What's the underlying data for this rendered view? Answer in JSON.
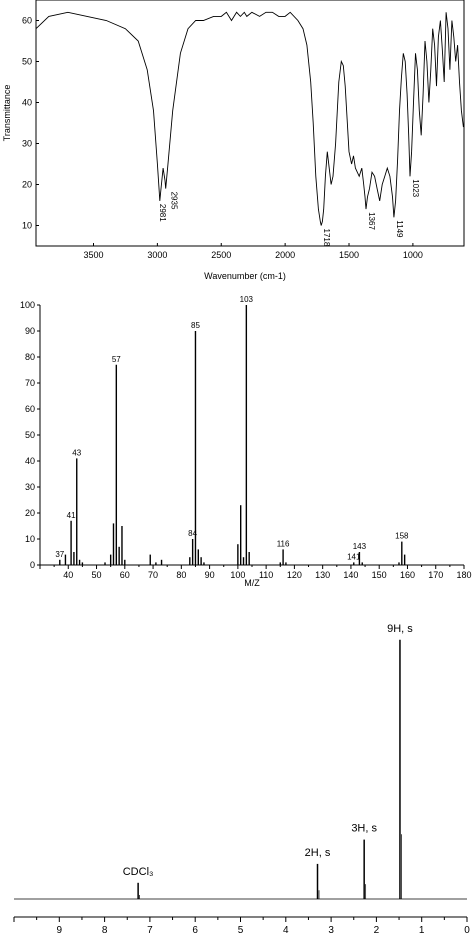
{
  "chart_data": [
    {
      "type": "line",
      "ylabel": "Transmittance",
      "xlabel": "Wavenumber (cm-1)",
      "xlim": [
        3950,
        600
      ],
      "ylim": [
        5,
        65
      ],
      "xticks": [
        "3500",
        "3000",
        "2500",
        "2000",
        "1500",
        "1000"
      ],
      "yticks": [
        "10",
        "20",
        "30",
        "40",
        "50",
        "60"
      ],
      "series": [
        {
          "x": [
            3950,
            3850,
            3700,
            3550,
            3400,
            3250,
            3150,
            3080,
            3030,
            3000,
            2985,
            2981,
            2975,
            2955,
            2940,
            2935,
            2920,
            2880,
            2820,
            2760,
            2700,
            2640,
            2560,
            2500,
            2460,
            2420,
            2380,
            2350,
            2320,
            2300,
            2260,
            2200,
            2150,
            2100,
            2050,
            2000,
            1960,
            1900,
            1860,
            1830,
            1800,
            1780,
            1760,
            1740,
            1725,
            1718,
            1708,
            1698,
            1685,
            1670,
            1655,
            1640,
            1625,
            1605,
            1580,
            1560,
            1545,
            1530,
            1515,
            1500,
            1480,
            1465,
            1450,
            1435,
            1420,
            1400,
            1385,
            1375,
            1367,
            1355,
            1340,
            1320,
            1300,
            1280,
            1260,
            1240,
            1220,
            1200,
            1180,
            1160,
            1149,
            1135,
            1120,
            1105,
            1090,
            1075,
            1060,
            1045,
            1033,
            1023,
            1010,
            995,
            980,
            965,
            950,
            935,
            920,
            905,
            890,
            875,
            860,
            845,
            830,
            815,
            800,
            785,
            770,
            755,
            740,
            725,
            710,
            695,
            680,
            665,
            650,
            635,
            620,
            605
          ],
          "y": [
            58,
            61,
            62,
            61,
            60,
            58,
            55,
            48,
            38,
            25,
            18,
            16,
            18,
            24,
            21,
            19,
            24,
            38,
            52,
            58,
            60,
            60,
            61,
            61,
            62,
            60,
            62,
            61,
            62,
            61,
            62,
            61,
            62,
            62,
            61,
            61,
            62,
            60,
            58,
            54,
            45,
            35,
            22,
            14,
            11,
            10,
            11,
            14,
            22,
            28,
            24,
            20,
            22,
            30,
            45,
            50,
            49,
            44,
            36,
            28,
            25,
            27,
            24,
            23,
            22,
            24,
            20,
            17,
            14,
            17,
            19,
            23,
            22,
            19,
            16,
            20,
            22,
            24,
            22,
            17,
            12,
            16,
            26,
            38,
            46,
            52,
            50,
            42,
            32,
            22,
            28,
            40,
            52,
            48,
            38,
            32,
            42,
            55,
            50,
            40,
            48,
            58,
            54,
            44,
            56,
            60,
            53,
            45,
            62,
            58,
            48,
            60,
            56,
            50,
            54,
            45,
            38,
            34
          ],
          "peak_labels": [
            {
              "x": 2981,
              "y": 16,
              "label": "2981"
            },
            {
              "x": 2935,
              "y": 19,
              "label": "2935"
            },
            {
              "x": 1718,
              "y": 10,
              "label": "1718"
            },
            {
              "x": 1367,
              "y": 14,
              "label": "1367"
            },
            {
              "x": 1149,
              "y": 12,
              "label": "1149"
            },
            {
              "x": 1023,
              "y": 22,
              "label": "1023"
            }
          ]
        }
      ]
    },
    {
      "type": "bar",
      "xlabel": "M/Z",
      "xlim": [
        30,
        180
      ],
      "ylim": [
        0,
        100
      ],
      "xticks": [
        "40",
        "50",
        "60",
        "70",
        "80",
        "90",
        "100",
        "110",
        "120",
        "130",
        "140",
        "150",
        "160",
        "170",
        "180"
      ],
      "yticks": [
        "0",
        "10",
        "20",
        "30",
        "40",
        "50",
        "60",
        "70",
        "80",
        "90",
        "100"
      ],
      "peaks": [
        {
          "mz": 37,
          "intensity": 2,
          "label": "37"
        },
        {
          "mz": 39,
          "intensity": 4
        },
        {
          "mz": 41,
          "intensity": 17,
          "label": "41"
        },
        {
          "mz": 42,
          "intensity": 5
        },
        {
          "mz": 43,
          "intensity": 41,
          "label": "43"
        },
        {
          "mz": 44,
          "intensity": 2
        },
        {
          "mz": 45,
          "intensity": 1
        },
        {
          "mz": 53,
          "intensity": 1
        },
        {
          "mz": 55,
          "intensity": 4
        },
        {
          "mz": 56,
          "intensity": 16
        },
        {
          "mz": 57,
          "intensity": 77,
          "label": "57"
        },
        {
          "mz": 58,
          "intensity": 7
        },
        {
          "mz": 59,
          "intensity": 15
        },
        {
          "mz": 60,
          "intensity": 2
        },
        {
          "mz": 69,
          "intensity": 4
        },
        {
          "mz": 71,
          "intensity": 1
        },
        {
          "mz": 73,
          "intensity": 2
        },
        {
          "mz": 83,
          "intensity": 3
        },
        {
          "mz": 84,
          "intensity": 10,
          "label": "84"
        },
        {
          "mz": 85,
          "intensity": 90,
          "label": "85"
        },
        {
          "mz": 86,
          "intensity": 6
        },
        {
          "mz": 87,
          "intensity": 3
        },
        {
          "mz": 88,
          "intensity": 1
        },
        {
          "mz": 100,
          "intensity": 8
        },
        {
          "mz": 101,
          "intensity": 23
        },
        {
          "mz": 102,
          "intensity": 3
        },
        {
          "mz": 103,
          "intensity": 100,
          "label": "103"
        },
        {
          "mz": 104,
          "intensity": 5
        },
        {
          "mz": 115,
          "intensity": 1
        },
        {
          "mz": 116,
          "intensity": 6,
          "label": "116"
        },
        {
          "mz": 117,
          "intensity": 1
        },
        {
          "mz": 141,
          "intensity": 1,
          "label": "141"
        },
        {
          "mz": 143,
          "intensity": 5,
          "label": "143"
        },
        {
          "mz": 144,
          "intensity": 1
        },
        {
          "mz": 157,
          "intensity": 1
        },
        {
          "mz": 158,
          "intensity": 9,
          "label": "158"
        },
        {
          "mz": 159,
          "intensity": 4
        }
      ]
    },
    {
      "type": "line",
      "xlim": [
        10,
        0
      ],
      "xticks": [
        "9",
        "8",
        "7",
        "6",
        "5",
        "4",
        "3",
        "2",
        "1",
        "0"
      ],
      "peaks": [
        {
          "ppm": 7.26,
          "height": 0.06,
          "label": "CDCl₃"
        },
        {
          "ppm": 3.3,
          "height": 0.13,
          "label": "2H, s"
        },
        {
          "ppm": 2.27,
          "height": 0.22,
          "label": "3H, s"
        },
        {
          "ppm": 1.48,
          "height": 0.96,
          "label": "9H, s"
        }
      ]
    }
  ]
}
